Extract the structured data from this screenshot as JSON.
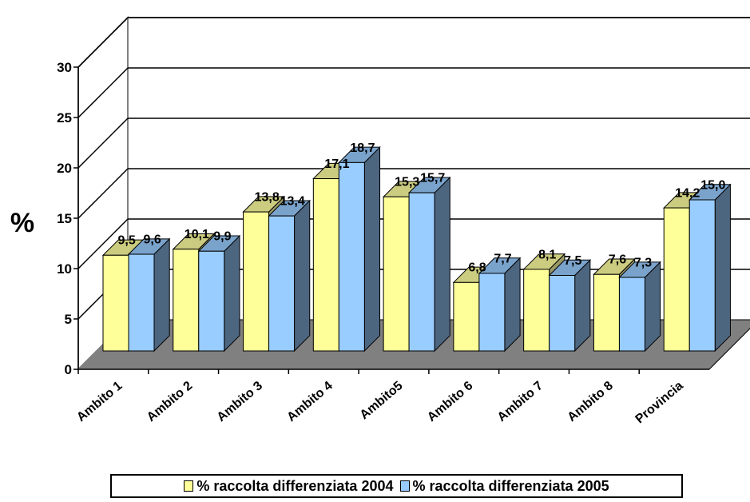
{
  "chart_data": {
    "type": "bar",
    "title": "",
    "xlabel": "",
    "ylabel": "%",
    "ylim": [
      0,
      30
    ],
    "yticks": [
      "0",
      "5",
      "10",
      "15",
      "20",
      "25",
      "30"
    ],
    "categories": [
      "Ambito 1",
      "Ambito 2",
      "Ambito 3",
      "Ambito 4",
      "Ambito5",
      "Ambito 6",
      "Ambito 7",
      "Ambito 8",
      "Provincia"
    ],
    "series": [
      {
        "name": "% raccolta differenziata 2004",
        "values": [
          9.5,
          10.1,
          13.8,
          17.1,
          15.3,
          6.8,
          8.1,
          7.6,
          14.2
        ],
        "labels": [
          "9,5",
          "10,1",
          "13,8",
          "17,1",
          "15,3",
          "6,8",
          "8,1",
          "7,6",
          "14,2"
        ],
        "color": "#FFFF99"
      },
      {
        "name": "% raccolta differenziata 2005",
        "values": [
          9.6,
          9.9,
          13.4,
          18.7,
          15.7,
          7.7,
          7.5,
          7.3,
          15.0
        ],
        "labels": [
          "9,6",
          "9,9",
          "13,4",
          "18,7",
          "15,7",
          "7,7",
          "7,5",
          "7,3",
          "15,0"
        ],
        "color": "#99CCFF"
      }
    ],
    "grid": true,
    "legend_position": "bottom",
    "colors": {
      "floor": "#808080",
      "grid": "#000000"
    }
  }
}
